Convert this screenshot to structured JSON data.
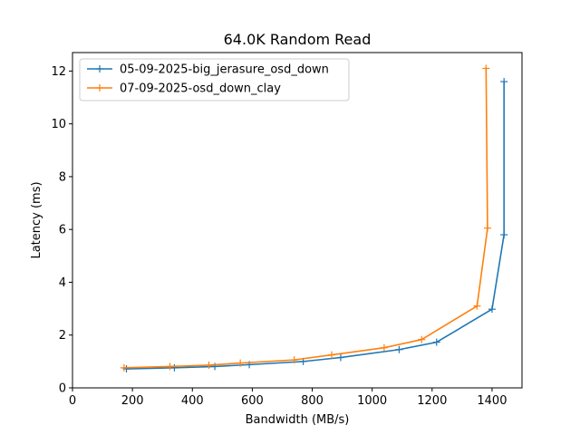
{
  "chart_data": {
    "type": "line",
    "title": "64.0K  Random Read",
    "xlabel": "Bandwidth (MB/s)",
    "ylabel": "Latency (ms)",
    "xlim": [
      0,
      1500
    ],
    "ylim": [
      0,
      12.7
    ],
    "xticks": [
      0,
      200,
      400,
      600,
      800,
      1000,
      1200,
      1400
    ],
    "yticks": [
      0,
      2,
      4,
      6,
      8,
      10,
      12
    ],
    "grid": false,
    "legend_position": "upper-left",
    "series": [
      {
        "name": "05-09-2025-big_jerasure_osd_down",
        "color": "#1f77b4",
        "marker": "+",
        "points": [
          [
            180,
            0.72
          ],
          [
            340,
            0.76
          ],
          [
            475,
            0.81
          ],
          [
            590,
            0.88
          ],
          [
            770,
            1.0
          ],
          [
            895,
            1.15
          ],
          [
            1090,
            1.45
          ],
          [
            1215,
            1.73
          ],
          [
            1400,
            2.98
          ],
          [
            1440,
            5.8
          ],
          [
            1440,
            11.6
          ]
        ]
      },
      {
        "name": "07-09-2025-osd_down_clay",
        "color": "#ff7f0e",
        "marker": "+",
        "points": [
          [
            172,
            0.76
          ],
          [
            325,
            0.81
          ],
          [
            455,
            0.86
          ],
          [
            560,
            0.94
          ],
          [
            740,
            1.06
          ],
          [
            865,
            1.25
          ],
          [
            1040,
            1.52
          ],
          [
            1165,
            1.83
          ],
          [
            1350,
            3.1
          ],
          [
            1385,
            6.05
          ],
          [
            1380,
            12.1
          ]
        ]
      }
    ]
  }
}
